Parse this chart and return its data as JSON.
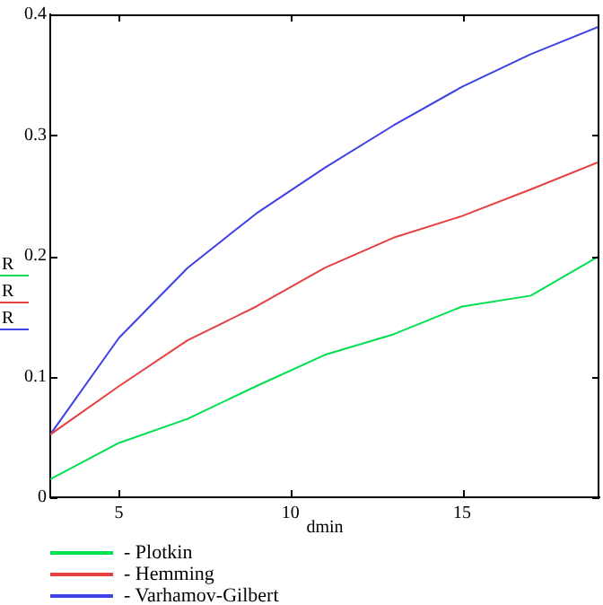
{
  "chart_data": {
    "type": "line",
    "xlabel": "dmin",
    "ylabel": "R",
    "x": [
      3,
      5,
      7,
      9,
      11,
      13,
      15,
      17,
      19
    ],
    "xlim": [
      3,
      19
    ],
    "xticks": [
      5,
      10,
      15
    ],
    "ylim": [
      0,
      0.4
    ],
    "yticks": [
      0,
      0.1,
      0.2,
      0.3,
      0.4
    ],
    "grid": false,
    "legend": "bottom left",
    "marker": "none",
    "line_style": "solid",
    "series": [
      {
        "name": "- Plotkin",
        "color": "#00e050",
        "values": [
          0.015,
          0.045,
          0.065,
          0.092,
          0.118,
          0.135,
          0.158,
          0.167,
          0.2
        ]
      },
      {
        "name": "- Hemming",
        "color": "#e84040",
        "values": [
          0.052,
          0.092,
          0.13,
          0.158,
          0.19,
          0.215,
          0.233,
          0.255,
          0.278
        ]
      },
      {
        "name": "- Varhamov-Gilbert",
        "color": "#4040e8",
        "values": [
          0.052,
          0.132,
          0.19,
          0.235,
          0.273,
          0.308,
          0.34,
          0.367,
          0.39
        ]
      }
    ]
  }
}
